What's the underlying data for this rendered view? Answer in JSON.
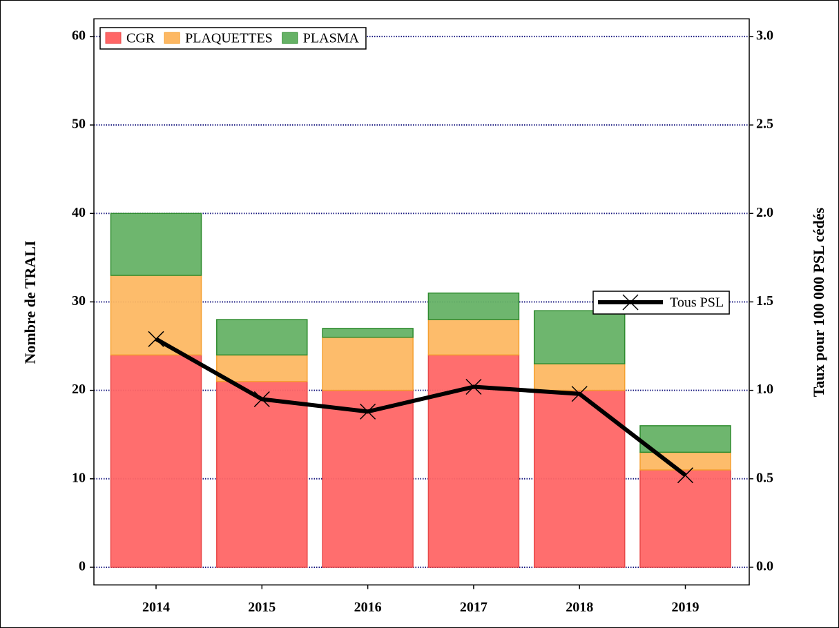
{
  "chart_data": {
    "type": "bar",
    "stacked": true,
    "ylabel": "Nombre de TRALI",
    "y2label": "Taux pour 100 000 PSL cédés",
    "categories": [
      "2014",
      "2015",
      "2016",
      "2017",
      "2018",
      "2019"
    ],
    "series": [
      {
        "name": "CGR",
        "color": "#ff6666",
        "values": [
          24,
          21,
          20,
          24,
          20,
          11
        ]
      },
      {
        "name": "PLAQUETTES",
        "color": "#fdb863",
        "values": [
          9,
          3,
          6,
          4,
          3,
          2
        ]
      },
      {
        "name": "PLASMA",
        "color": "#66b266",
        "values": [
          7,
          4,
          1,
          3,
          6,
          3
        ]
      },
      {
        "name": "Tous PSL",
        "type": "line",
        "axis": "y2",
        "color": "#000000",
        "values": [
          1.29,
          0.95,
          0.88,
          1.02,
          0.98,
          0.52
        ]
      }
    ],
    "ylim": [
      -2,
      62
    ],
    "yticks": [
      0,
      10,
      20,
      30,
      40,
      50,
      60
    ],
    "y2lim": [
      -0.1,
      3.1
    ],
    "y2ticks": [
      {
        "value": 0,
        "label": "0.0"
      },
      0.5,
      {
        "value": 1,
        "label": "1.0"
      },
      1.5,
      {
        "value": 2,
        "label": "2.0"
      },
      2.5,
      {
        "value": 3,
        "label": "3.0"
      }
    ],
    "grid": true,
    "legend": "upper left",
    "line_legend": "center right"
  }
}
